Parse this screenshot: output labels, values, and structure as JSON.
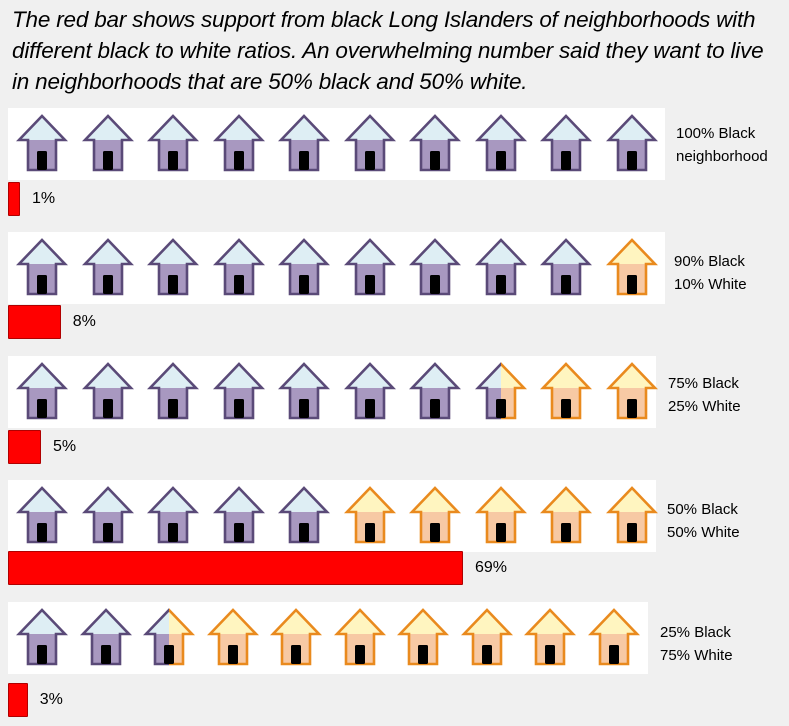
{
  "title": "The red bar shows support from black Long Islanders of neighborhoods with different black to white ratios.  An overwhelming number said they want to live in neighborhoods that are 50% black and 50% white.",
  "colors": {
    "black_house_roof": "#deeef4",
    "black_house_body": "#a898c0",
    "black_house_outline": "#5a4a78",
    "white_house_roof": "#fff5c0",
    "white_house_body": "#f7c9a4",
    "white_house_outline": "#e98a1e",
    "bar": "#ff0000"
  },
  "chart_data": {
    "type": "bar",
    "orientation": "horizontal",
    "categories": [
      "100% Black\nneighborhood",
      "90% Black\n10% White",
      "75% Black\n25% White",
      "50% Black\n50% White",
      "25% Black\n75% White"
    ],
    "values": [
      1,
      8,
      5,
      69,
      3
    ],
    "labels": [
      "1%",
      "8%",
      "5%",
      "69%",
      "3%"
    ],
    "black_houses": [
      10,
      9,
      7.5,
      5,
      2.5
    ],
    "total_houses": 10
  }
}
